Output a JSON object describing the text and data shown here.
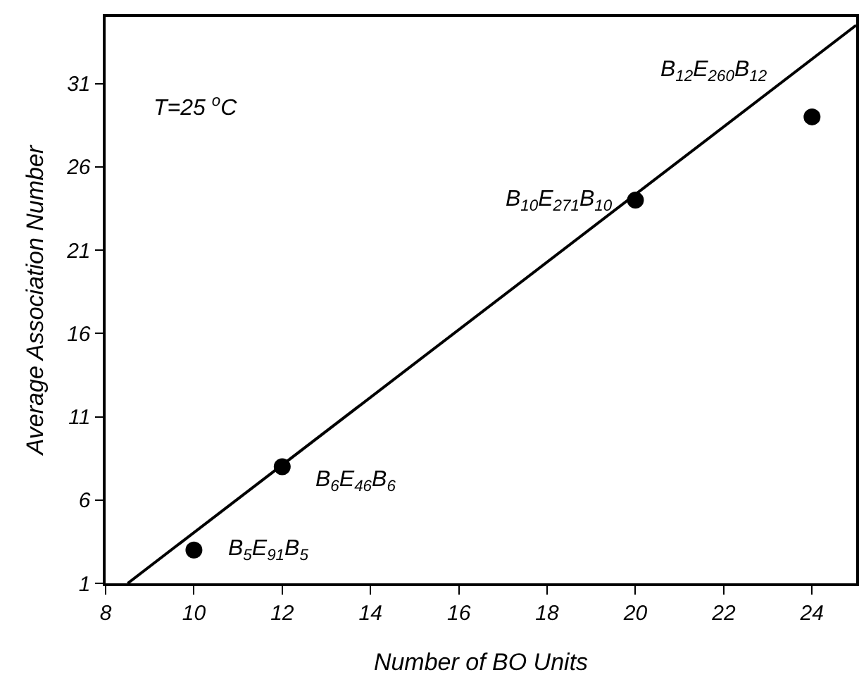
{
  "chart_data": {
    "type": "scatter",
    "xlabel": "Number of BO Units",
    "ylabel": "Average Association Number",
    "xlim": [
      8,
      25
    ],
    "xticks": [
      8,
      10,
      12,
      14,
      16,
      18,
      20,
      22,
      24
    ],
    "ylim": [
      1,
      35
    ],
    "yticks": [
      1,
      6,
      11,
      16,
      21,
      26,
      31
    ],
    "grid": false,
    "marker": "circle",
    "series": [
      {
        "color": "#000000",
        "x": [
          10,
          12,
          20,
          24
        ],
        "values": [
          3,
          8,
          24,
          29
        ]
      },
      {
        "type": "line",
        "color": "#000000",
        "x": [
          8.5,
          25
        ],
        "values": [
          1,
          34.5
        ],
        "line_style": "solid",
        "marker": "none"
      }
    ],
    "annotations": [
      {
        "text": "B$_{5}$E$_{91}$B$_{5}$",
        "x": 10,
        "y": 3
      },
      {
        "text": "B$_{6}$E$_{46}$B$_{6}$",
        "x": 12,
        "y": 8
      },
      {
        "text": "B$_{10}$E$_{271}$B$_{10}$",
        "x": 20,
        "y": 24
      },
      {
        "text": "B$_{12}$E$_{260}$B$_{12}$",
        "x": 24,
        "y": 29
      },
      "T=25 $^{o}$C"
    ]
  }
}
